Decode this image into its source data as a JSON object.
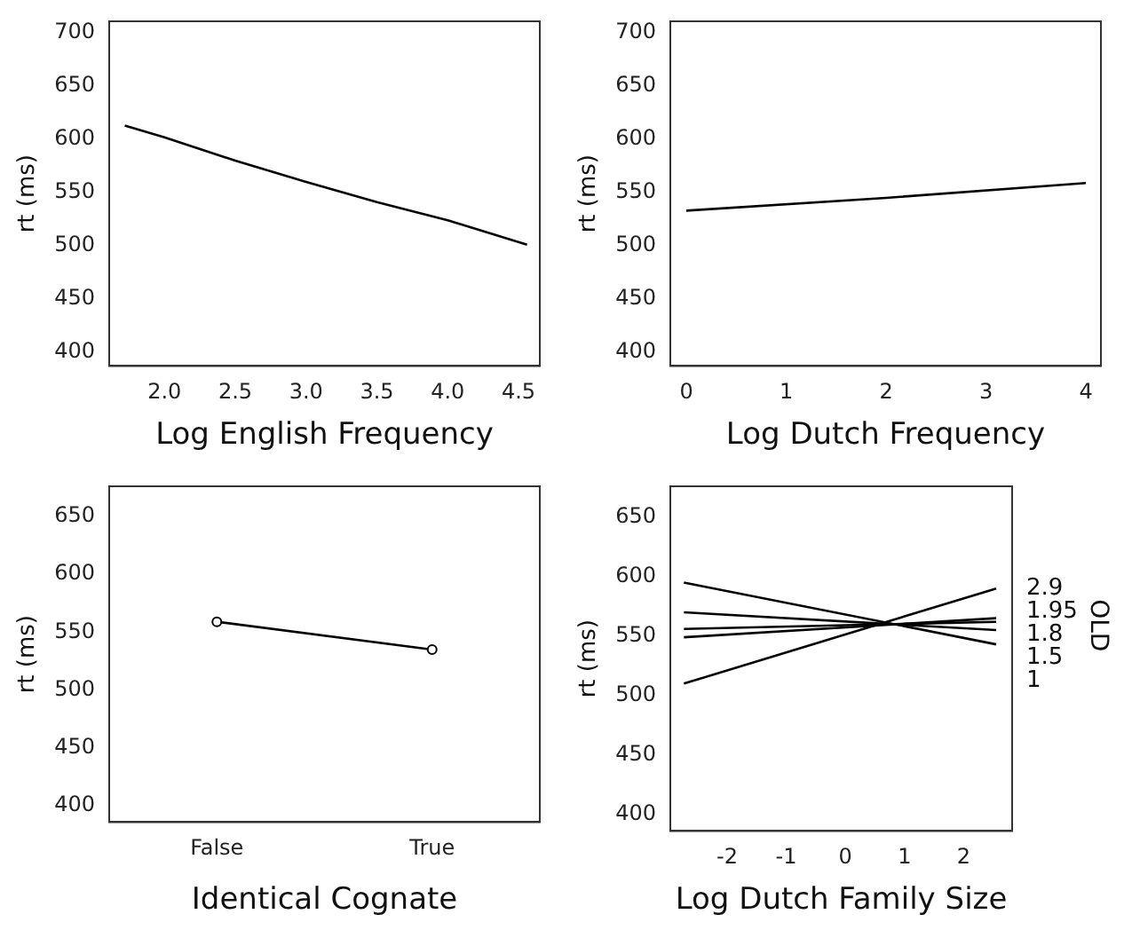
{
  "chart_data": [
    {
      "type": "line",
      "xlabel": "Log English Frequency",
      "ylabel": "rt (ms)",
      "xlim": [
        1.61,
        4.65
      ],
      "xticks": [
        {
          "value": 2,
          "label": "2.0"
        },
        2.5,
        {
          "value": 3,
          "label": "3.0"
        },
        3.5,
        {
          "value": 4,
          "label": "4.0"
        },
        4.5
      ],
      "ylim": [
        387,
        711
      ],
      "yticks": [
        400,
        450,
        500,
        550,
        600,
        650,
        700
      ],
      "grid": false,
      "marker": "none",
      "line_style": "solid",
      "series": [
        {
          "color": "#000000",
          "x": [
            1.72,
            2.0,
            2.5,
            3.0,
            3.5,
            4.0,
            4.56
          ],
          "values": [
            613,
            602,
            580,
            560,
            541,
            524,
            501
          ]
        }
      ]
    },
    {
      "type": "line",
      "xlabel": "Log Dutch Frequency",
      "ylabel": "rt (ms)",
      "xlim": [
        -0.16,
        4.15
      ],
      "xticks": [
        0,
        1,
        2,
        3,
        4
      ],
      "ylim": [
        387,
        711
      ],
      "yticks": [
        400,
        450,
        500,
        550,
        600,
        650,
        700
      ],
      "grid": false,
      "marker": "none",
      "line_style": "solid",
      "series": [
        {
          "color": "#000000",
          "x": [
            0,
            2,
            4
          ],
          "values": [
            533,
            545,
            559
          ]
        }
      ]
    },
    {
      "type": "line",
      "xlabel": "Identical Cognate",
      "ylabel": "rt (ms)",
      "categories": [
        "False",
        "True"
      ],
      "ylim": [
        386,
        676
      ],
      "yticks": [
        400,
        450,
        500,
        550,
        600,
        650
      ],
      "grid": false,
      "marker": "circle",
      "line_style": "solid",
      "series": [
        {
          "color": "#000000",
          "values": [
            559,
            535
          ]
        }
      ]
    },
    {
      "type": "line",
      "xlabel": "Log Dutch Family Size",
      "ylabel": "rt (ms)",
      "legend_title": "OLD",
      "xlim": [
        -2.96,
        2.82
      ],
      "xticks": [
        -2,
        -1,
        0,
        1,
        2
      ],
      "ylim": [
        386,
        676
      ],
      "yticks": [
        400,
        450,
        500,
        550,
        600,
        650
      ],
      "grid": false,
      "marker": "none",
      "line_style": "solid",
      "series": [
        {
          "name": "2.9",
          "color": "#000000",
          "x": [
            -2.73,
            2.55
          ],
          "values": [
            510,
            590
          ]
        },
        {
          "name": "1.95",
          "color": "#000000",
          "x": [
            -2.73,
            2.55
          ],
          "values": [
            549,
            565
          ]
        },
        {
          "name": "1.8",
          "color": "#000000",
          "x": [
            -2.73,
            2.55
          ],
          "values": [
            556,
            562
          ]
        },
        {
          "name": "1.5",
          "color": "#000000",
          "x": [
            -2.73,
            2.55
          ],
          "values": [
            570,
            555
          ]
        },
        {
          "name": "1",
          "color": "#000000",
          "x": [
            -2.73,
            2.55
          ],
          "values": [
            595,
            543
          ]
        }
      ]
    }
  ]
}
